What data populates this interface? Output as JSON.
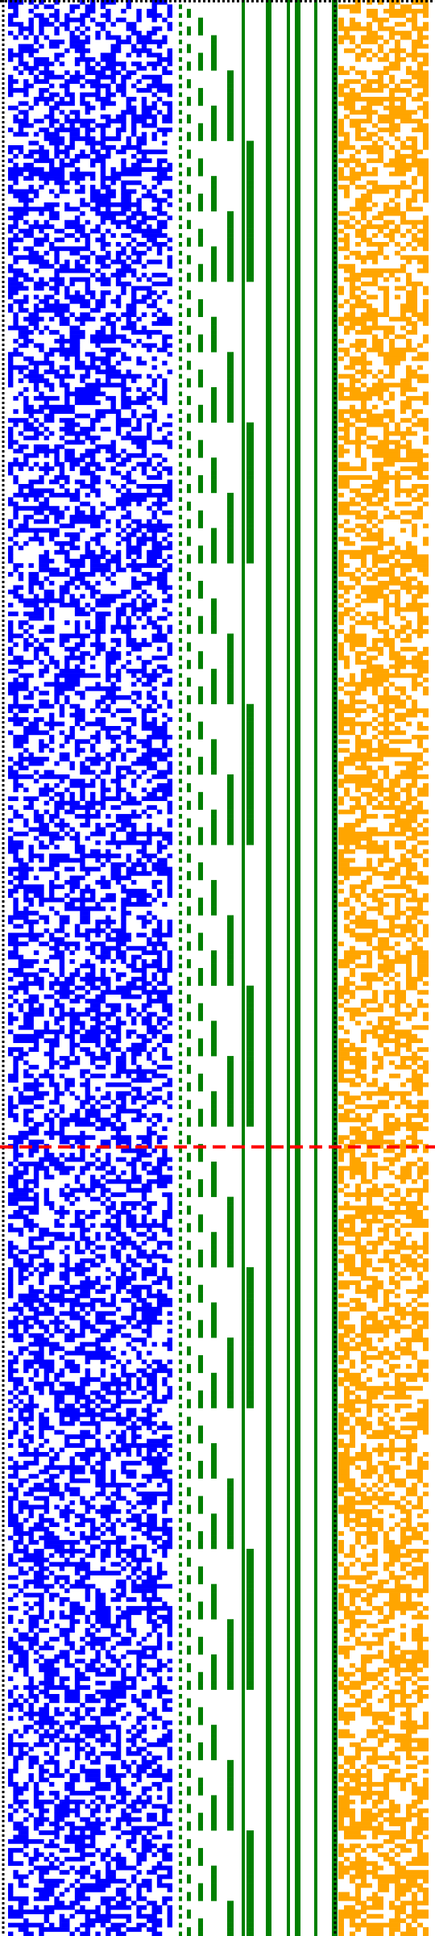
{
  "title": "",
  "description": "",
  "colors": {
    "background": "#ffffff",
    "left_panel": "#0000ff",
    "counter_panel": "#008000",
    "right_panel": "#ffa500",
    "separator": "#000000",
    "marker_line": "#ff0000"
  },
  "grid": {
    "rows": 440,
    "left_cols": 32,
    "right_cols": 16,
    "bit_fill_density_left": 0.5,
    "bit_fill_density_right": 0.55,
    "counter_bits": 6,
    "marker_row": 257,
    "seed": 1234567
  },
  "labels": {
    "left_panel": "",
    "counter_panel": "",
    "right_panel": ""
  }
}
